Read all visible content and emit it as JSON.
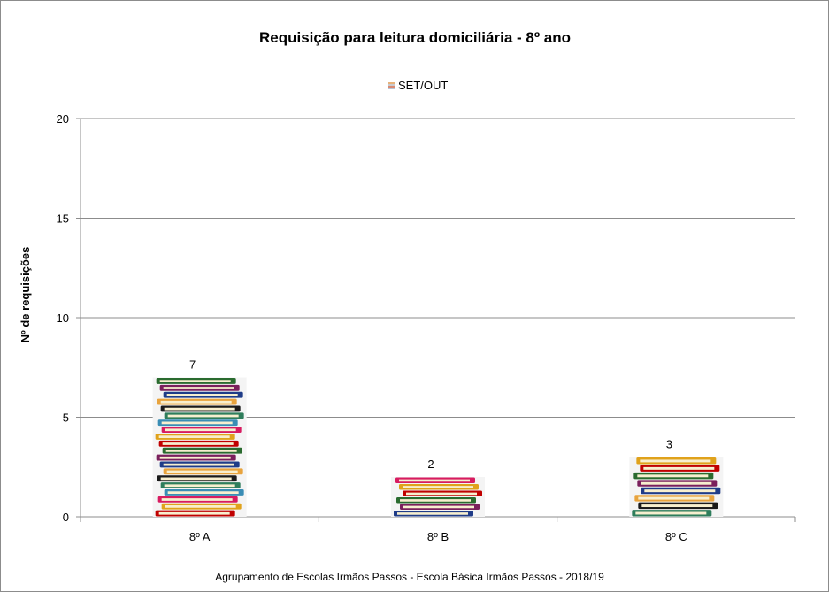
{
  "chart_data": {
    "type": "bar",
    "title": "Requisição para leitura domiciliária  - 8º ano",
    "ylabel": "Nº de requisições",
    "xlabel": "",
    "categories": [
      "8º A",
      "8º B",
      "8º C"
    ],
    "series": [
      {
        "name": "SET/OUT",
        "values": [
          7,
          2,
          3
        ]
      }
    ],
    "ylim": [
      0,
      20
    ],
    "yticks": [
      0,
      5,
      10,
      15,
      20
    ],
    "grid": true,
    "legend_position": "top",
    "data_labels": true,
    "bar_fill": "book-stack-pictogram",
    "book_colors": [
      "#c00000",
      "#1f3c88",
      "#2e7d5b",
      "#e0a21b",
      "#7a1f5c",
      "#1a1a1a",
      "#d81b60",
      "#2a6b2f",
      "#e8a33d",
      "#3a8db5"
    ]
  },
  "footer": "Agrupamento de Escolas Irmãos Passos - Escola Básica Irmãos Passos - 2018/19"
}
